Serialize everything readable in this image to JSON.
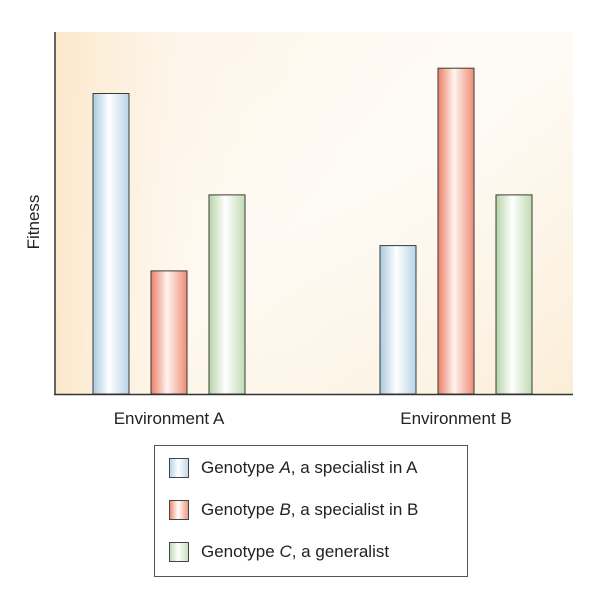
{
  "chart_data": {
    "type": "bar",
    "ylabel": "Fitness",
    "xlabel": "",
    "categories": [
      "Environment A",
      "Environment B"
    ],
    "ylim": [
      0,
      100
    ],
    "grid": false,
    "legend_position": "bottom",
    "series": [
      {
        "name": "Genotype A, a specialist in A",
        "name_prefix": "Genotype ",
        "name_italic": "A",
        "name_suffix": ", a specialist in A",
        "values": [
          83,
          41
        ],
        "color": "#b8d4e6"
      },
      {
        "name": "Genotype B, a specialist in B",
        "name_prefix": "Genotype ",
        "name_italic": "B",
        "name_suffix": ", a specialist in B",
        "values": [
          34,
          90
        ],
        "color": "#ef8a73"
      },
      {
        "name": "Genotype C, a generalist",
        "name_prefix": "Genotype ",
        "name_italic": "C",
        "name_suffix": ", a generalist",
        "values": [
          55,
          55
        ],
        "color": "#c0dbb4"
      }
    ],
    "colors": {
      "background_top": "#fdf3e4",
      "background_bottom": "#fbe8cc",
      "axis": "#333333"
    }
  }
}
